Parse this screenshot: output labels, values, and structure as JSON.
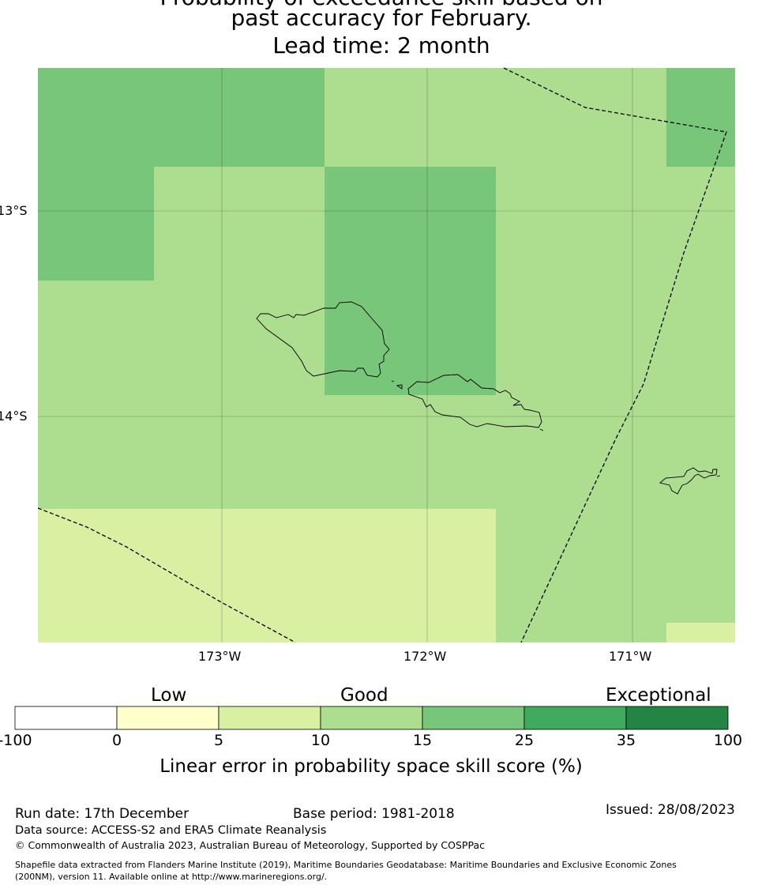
{
  "title": {
    "line0": "Probability of exceedance skill based on",
    "line1": "past accuracy for February.",
    "line2": "Lead time: 2 month"
  },
  "map": {
    "lat_labels": [
      "13°S",
      "14°S"
    ],
    "lon_labels": [
      "173°W",
      "172°W",
      "171°W"
    ]
  },
  "chart_data": {
    "type": "heatmap",
    "description_grid_categories": "category index per cell (0:-100..0,1:0..5,2:5..10,3:10..15,4:15..25,5:25..35,6:35..100)",
    "grid": [
      [
        4,
        4,
        3,
        3,
        4
      ],
      [
        4,
        3,
        4,
        3,
        3
      ],
      [
        3,
        3,
        4,
        3,
        3
      ],
      [
        3,
        3,
        3,
        3,
        3
      ],
      [
        2,
        2,
        2,
        3,
        3
      ],
      [
        2,
        2,
        2,
        3,
        2
      ]
    ],
    "lon_ticks": [
      -173,
      -172,
      -171
    ],
    "lat_ticks": [
      -13,
      -14
    ]
  },
  "colorbar": {
    "ticks": [
      "-100",
      "0",
      "5",
      "10",
      "15",
      "25",
      "35",
      "100"
    ],
    "colors": [
      "#ffffff",
      "#ffffcc",
      "#d9f0a3",
      "#addd8e",
      "#78c679",
      "#41ab5d",
      "#238443"
    ],
    "category_labels": [
      "Low",
      "Good",
      "Exceptional"
    ],
    "label": "Linear error in probability space skill score (%)"
  },
  "footer": {
    "run_date": "Run date: 17th December",
    "base_period": "Base period: 1981-2018",
    "issued": "Issued: 28/08/2023",
    "data_source": "Data source: ACCESS-S2 and ERA5 Climate Reanalysis",
    "copyright": "© Commonwealth of Australia 2023, Australian Bureau of Meteorology, Supported by COSPPac",
    "shapefile_line1": "Shapefile data extracted from Flanders Marine Institute (2019), Maritime Boundaries Geodatabase: Maritime Boundaries and Exclusive Economic Zones",
    "shapefile_line2": "(200NM), version 11. Available online at http://www.marineregions.org/."
  }
}
